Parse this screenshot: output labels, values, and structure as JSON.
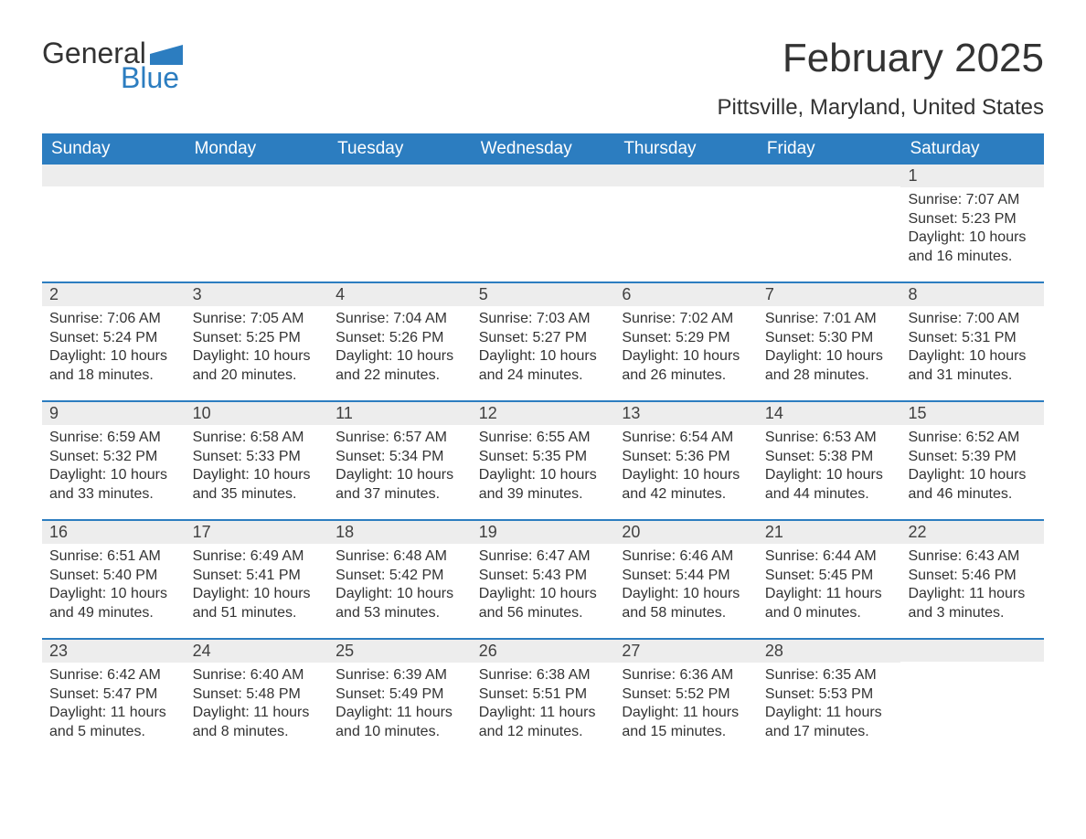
{
  "logo": {
    "line1": "General",
    "line2": "Blue",
    "brand_color": "#2c7dc0"
  },
  "title": "February 2025",
  "location": "Pittsville, Maryland, United States",
  "colors": {
    "header_bg": "#2c7dc0",
    "header_text": "#ffffff",
    "strip_bg": "#ededed",
    "text": "#333333",
    "divider": "#2c7dc0",
    "page_bg": "#ffffff"
  },
  "weekdays": [
    "Sunday",
    "Monday",
    "Tuesday",
    "Wednesday",
    "Thursday",
    "Friday",
    "Saturday"
  ],
  "weeks": [
    [
      {
        "n": "",
        "sunrise": "",
        "sunset": "",
        "daylight": ""
      },
      {
        "n": "",
        "sunrise": "",
        "sunset": "",
        "daylight": ""
      },
      {
        "n": "",
        "sunrise": "",
        "sunset": "",
        "daylight": ""
      },
      {
        "n": "",
        "sunrise": "",
        "sunset": "",
        "daylight": ""
      },
      {
        "n": "",
        "sunrise": "",
        "sunset": "",
        "daylight": ""
      },
      {
        "n": "",
        "sunrise": "",
        "sunset": "",
        "daylight": ""
      },
      {
        "n": "1",
        "sunrise": "Sunrise: 7:07 AM",
        "sunset": "Sunset: 5:23 PM",
        "daylight": "Daylight: 10 hours and 16 minutes."
      }
    ],
    [
      {
        "n": "2",
        "sunrise": "Sunrise: 7:06 AM",
        "sunset": "Sunset: 5:24 PM",
        "daylight": "Daylight: 10 hours and 18 minutes."
      },
      {
        "n": "3",
        "sunrise": "Sunrise: 7:05 AM",
        "sunset": "Sunset: 5:25 PM",
        "daylight": "Daylight: 10 hours and 20 minutes."
      },
      {
        "n": "4",
        "sunrise": "Sunrise: 7:04 AM",
        "sunset": "Sunset: 5:26 PM",
        "daylight": "Daylight: 10 hours and 22 minutes."
      },
      {
        "n": "5",
        "sunrise": "Sunrise: 7:03 AM",
        "sunset": "Sunset: 5:27 PM",
        "daylight": "Daylight: 10 hours and 24 minutes."
      },
      {
        "n": "6",
        "sunrise": "Sunrise: 7:02 AM",
        "sunset": "Sunset: 5:29 PM",
        "daylight": "Daylight: 10 hours and 26 minutes."
      },
      {
        "n": "7",
        "sunrise": "Sunrise: 7:01 AM",
        "sunset": "Sunset: 5:30 PM",
        "daylight": "Daylight: 10 hours and 28 minutes."
      },
      {
        "n": "8",
        "sunrise": "Sunrise: 7:00 AM",
        "sunset": "Sunset: 5:31 PM",
        "daylight": "Daylight: 10 hours and 31 minutes."
      }
    ],
    [
      {
        "n": "9",
        "sunrise": "Sunrise: 6:59 AM",
        "sunset": "Sunset: 5:32 PM",
        "daylight": "Daylight: 10 hours and 33 minutes."
      },
      {
        "n": "10",
        "sunrise": "Sunrise: 6:58 AM",
        "sunset": "Sunset: 5:33 PM",
        "daylight": "Daylight: 10 hours and 35 minutes."
      },
      {
        "n": "11",
        "sunrise": "Sunrise: 6:57 AM",
        "sunset": "Sunset: 5:34 PM",
        "daylight": "Daylight: 10 hours and 37 minutes."
      },
      {
        "n": "12",
        "sunrise": "Sunrise: 6:55 AM",
        "sunset": "Sunset: 5:35 PM",
        "daylight": "Daylight: 10 hours and 39 minutes."
      },
      {
        "n": "13",
        "sunrise": "Sunrise: 6:54 AM",
        "sunset": "Sunset: 5:36 PM",
        "daylight": "Daylight: 10 hours and 42 minutes."
      },
      {
        "n": "14",
        "sunrise": "Sunrise: 6:53 AM",
        "sunset": "Sunset: 5:38 PM",
        "daylight": "Daylight: 10 hours and 44 minutes."
      },
      {
        "n": "15",
        "sunrise": "Sunrise: 6:52 AM",
        "sunset": "Sunset: 5:39 PM",
        "daylight": "Daylight: 10 hours and 46 minutes."
      }
    ],
    [
      {
        "n": "16",
        "sunrise": "Sunrise: 6:51 AM",
        "sunset": "Sunset: 5:40 PM",
        "daylight": "Daylight: 10 hours and 49 minutes."
      },
      {
        "n": "17",
        "sunrise": "Sunrise: 6:49 AM",
        "sunset": "Sunset: 5:41 PM",
        "daylight": "Daylight: 10 hours and 51 minutes."
      },
      {
        "n": "18",
        "sunrise": "Sunrise: 6:48 AM",
        "sunset": "Sunset: 5:42 PM",
        "daylight": "Daylight: 10 hours and 53 minutes."
      },
      {
        "n": "19",
        "sunrise": "Sunrise: 6:47 AM",
        "sunset": "Sunset: 5:43 PM",
        "daylight": "Daylight: 10 hours and 56 minutes."
      },
      {
        "n": "20",
        "sunrise": "Sunrise: 6:46 AM",
        "sunset": "Sunset: 5:44 PM",
        "daylight": "Daylight: 10 hours and 58 minutes."
      },
      {
        "n": "21",
        "sunrise": "Sunrise: 6:44 AM",
        "sunset": "Sunset: 5:45 PM",
        "daylight": "Daylight: 11 hours and 0 minutes."
      },
      {
        "n": "22",
        "sunrise": "Sunrise: 6:43 AM",
        "sunset": "Sunset: 5:46 PM",
        "daylight": "Daylight: 11 hours and 3 minutes."
      }
    ],
    [
      {
        "n": "23",
        "sunrise": "Sunrise: 6:42 AM",
        "sunset": "Sunset: 5:47 PM",
        "daylight": "Daylight: 11 hours and 5 minutes."
      },
      {
        "n": "24",
        "sunrise": "Sunrise: 6:40 AM",
        "sunset": "Sunset: 5:48 PM",
        "daylight": "Daylight: 11 hours and 8 minutes."
      },
      {
        "n": "25",
        "sunrise": "Sunrise: 6:39 AM",
        "sunset": "Sunset: 5:49 PM",
        "daylight": "Daylight: 11 hours and 10 minutes."
      },
      {
        "n": "26",
        "sunrise": "Sunrise: 6:38 AM",
        "sunset": "Sunset: 5:51 PM",
        "daylight": "Daylight: 11 hours and 12 minutes."
      },
      {
        "n": "27",
        "sunrise": "Sunrise: 6:36 AM",
        "sunset": "Sunset: 5:52 PM",
        "daylight": "Daylight: 11 hours and 15 minutes."
      },
      {
        "n": "28",
        "sunrise": "Sunrise: 6:35 AM",
        "sunset": "Sunset: 5:53 PM",
        "daylight": "Daylight: 11 hours and 17 minutes."
      },
      {
        "n": "",
        "sunrise": "",
        "sunset": "",
        "daylight": ""
      }
    ]
  ]
}
